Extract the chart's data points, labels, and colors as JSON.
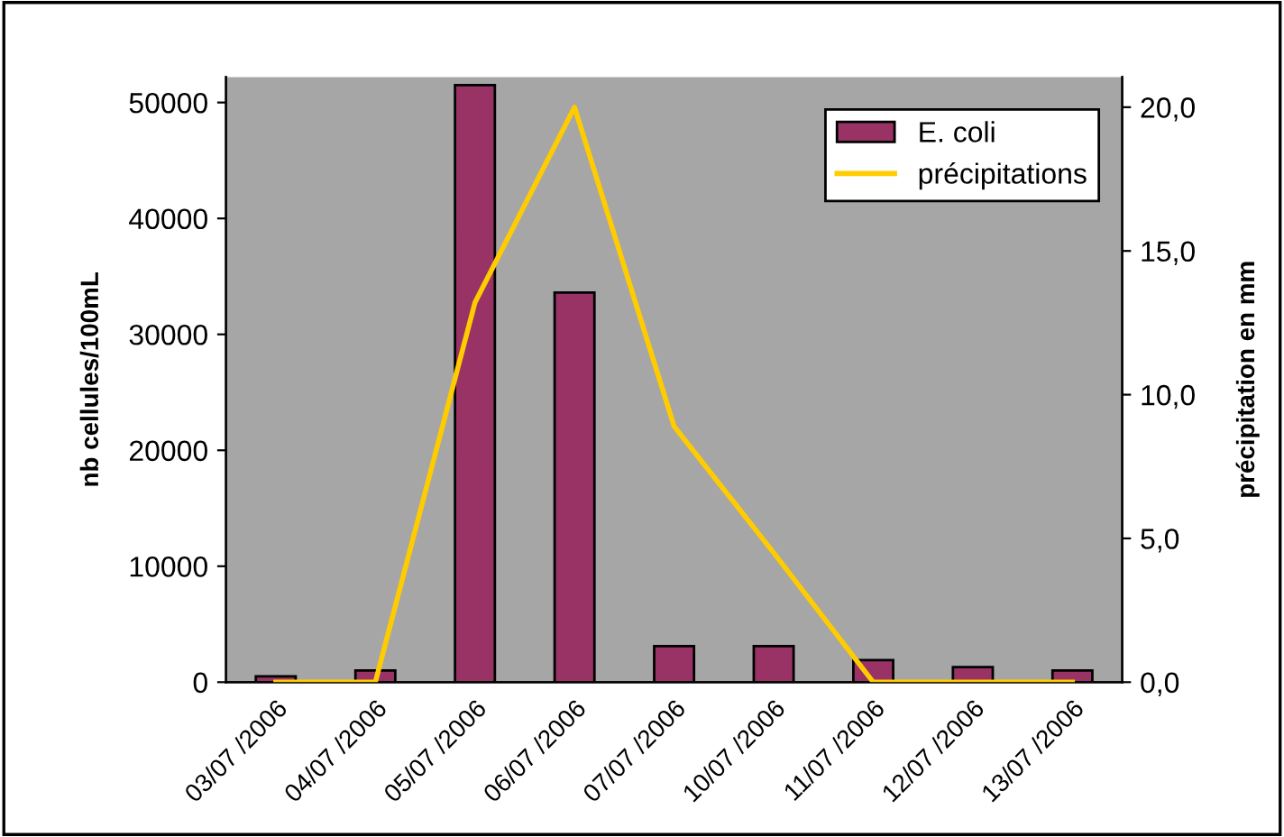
{
  "chart_data": {
    "type": "bar",
    "ylabel": "nb cellules/100mL",
    "y2label": "précipitation en mm",
    "categories": [
      "03/07 /2006",
      "04/07 /2006",
      "05/07 /2006",
      "06/07 /2006",
      "07/07 /2006",
      "10/07 /2006",
      "11/07 /2006",
      "12/07 /2006",
      "13/07 /2006"
    ],
    "series": [
      {
        "name": "E. coli",
        "color": "#993366",
        "values": [
          500,
          1000,
          51500,
          33600,
          3100,
          3100,
          1900,
          1300,
          1000
        ]
      },
      {
        "name": "précipitations",
        "type": "line",
        "axis": "y2",
        "color": "#ffcc00",
        "values": [
          0.0,
          0.0,
          13.2,
          20.0,
          8.9,
          4.5,
          0.0,
          0.0,
          0.0
        ]
      }
    ],
    "ylim": [
      0,
      52200
    ],
    "yticks": [
      0,
      10000,
      20000,
      30000,
      40000,
      50000
    ],
    "y2lim": [
      0,
      21.05
    ],
    "y2ticks": [
      {
        "value": 0,
        "label": "0,0"
      },
      {
        "value": 5,
        "label": "5,0"
      },
      {
        "value": 10,
        "label": "10,0"
      },
      {
        "value": 15,
        "label": "15,0"
      },
      {
        "value": 20,
        "label": "20,0"
      }
    ],
    "grid": false,
    "legend": "top right",
    "marker": "none",
    "line_style": "solid"
  }
}
